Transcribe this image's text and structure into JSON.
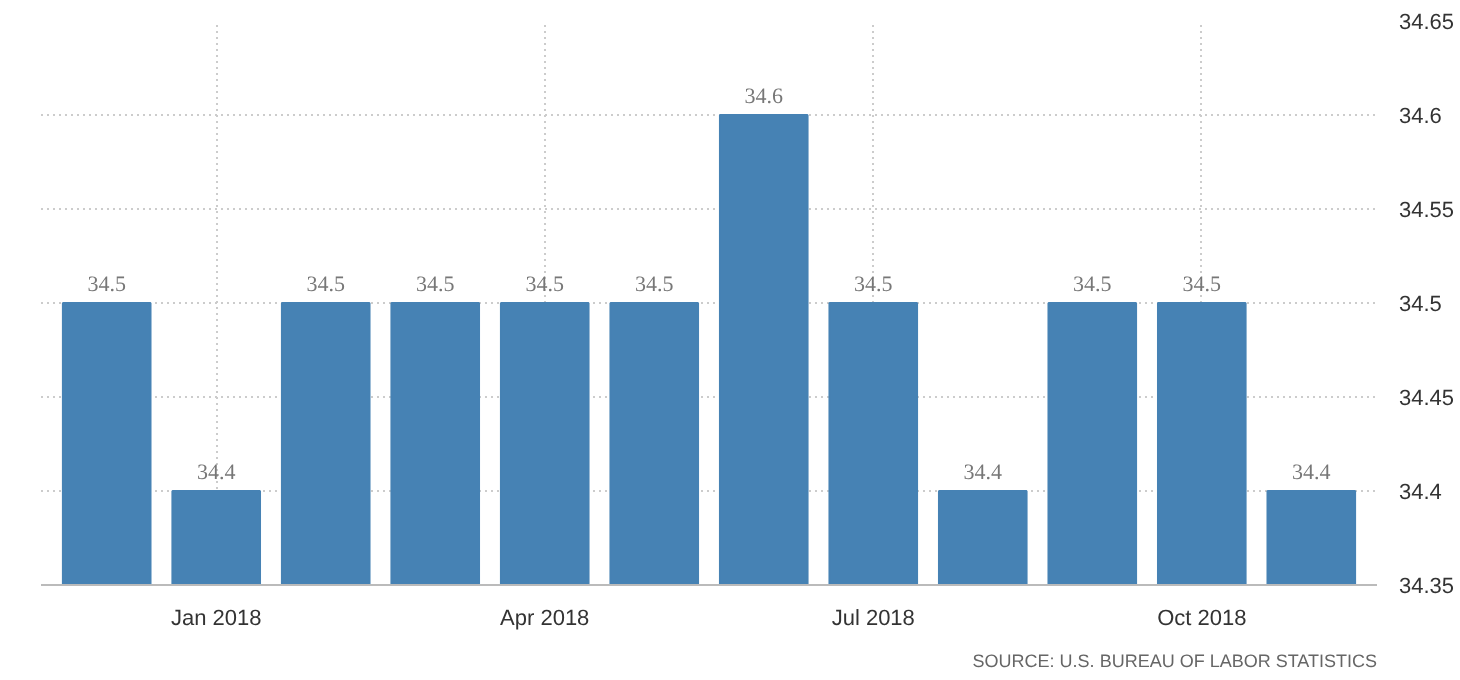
{
  "chart_data": {
    "type": "bar",
    "categories": [
      null,
      "Jan 2018",
      null,
      null,
      "Apr 2018",
      null,
      null,
      "Jul 2018",
      null,
      null,
      "Oct 2018",
      null
    ],
    "values": [
      34.5,
      34.4,
      34.5,
      34.5,
      34.5,
      34.5,
      34.6,
      34.5,
      34.4,
      34.5,
      34.5,
      34.4
    ],
    "color": "#4682b4",
    "ylim": [
      34.35,
      34.65
    ],
    "yticks": [
      34.35,
      34.4,
      34.45,
      34.5,
      34.55,
      34.6,
      34.65
    ],
    "grid": true,
    "data_labels": true,
    "annotations": [
      "SOURCE: U.S. BUREAU OF LABOR STATISTICS"
    ]
  }
}
